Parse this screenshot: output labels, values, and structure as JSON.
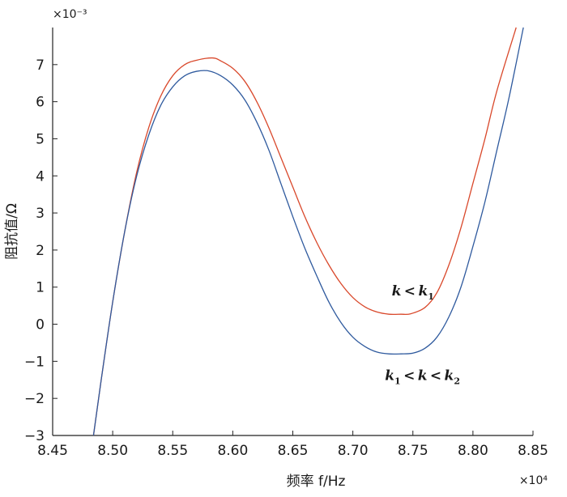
{
  "chart_data": {
    "type": "line",
    "xlabel": "频率 f/Hz",
    "ylabel": "阻抗值/Ω",
    "x_exponent_label": "×10⁴",
    "y_exponent_label": "×10⁻³",
    "xlim": [
      8.45,
      8.85
    ],
    "ylim": [
      -3,
      8
    ],
    "xticks": [
      "8.45",
      "8.50",
      "8.55",
      "8.60",
      "8.65",
      "8.70",
      "8.75",
      "8.80",
      "8.85"
    ],
    "yticks": [
      "7",
      "6",
      "5",
      "4",
      "3",
      "2",
      "1",
      "0",
      "-1",
      "-2",
      "-3"
    ],
    "grid": false,
    "series": [
      {
        "name": "k<k1",
        "color": "#d9482b",
        "x": [
          8.484,
          8.49,
          8.5,
          8.51,
          8.52,
          8.53,
          8.54,
          8.55,
          8.56,
          8.57,
          8.583,
          8.59,
          8.6,
          8.61,
          8.62,
          8.63,
          8.64,
          8.65,
          8.66,
          8.67,
          8.68,
          8.69,
          8.7,
          8.71,
          8.72,
          8.73,
          8.74,
          8.748,
          8.76,
          8.77,
          8.78,
          8.79,
          8.8,
          8.81,
          8.82,
          8.836
        ],
        "y": [
          -3.0,
          -1.6,
          0.6,
          2.5,
          4.1,
          5.3,
          6.15,
          6.7,
          7.0,
          7.12,
          7.18,
          7.1,
          6.9,
          6.55,
          6.0,
          5.3,
          4.5,
          3.7,
          2.9,
          2.2,
          1.6,
          1.1,
          0.72,
          0.47,
          0.33,
          0.27,
          0.27,
          0.28,
          0.45,
          0.85,
          1.6,
          2.6,
          3.8,
          5.0,
          6.3,
          8.0
        ]
      },
      {
        "name": "k1<k<k2",
        "color": "#2f5a9e",
        "x": [
          8.484,
          8.49,
          8.5,
          8.51,
          8.52,
          8.53,
          8.54,
          8.55,
          8.56,
          8.57,
          8.58,
          8.59,
          8.6,
          8.61,
          8.62,
          8.63,
          8.64,
          8.65,
          8.66,
          8.67,
          8.68,
          8.69,
          8.7,
          8.71,
          8.72,
          8.73,
          8.74,
          8.75,
          8.76,
          8.77,
          8.78,
          8.79,
          8.8,
          8.81,
          8.82,
          8.83,
          8.842
        ],
        "y": [
          -3.0,
          -1.6,
          0.6,
          2.5,
          4.0,
          5.1,
          5.9,
          6.4,
          6.7,
          6.82,
          6.83,
          6.7,
          6.45,
          6.05,
          5.45,
          4.7,
          3.8,
          2.9,
          2.05,
          1.3,
          0.6,
          0.05,
          -0.35,
          -0.6,
          -0.75,
          -0.8,
          -0.8,
          -0.78,
          -0.65,
          -0.35,
          0.2,
          1.0,
          2.1,
          3.3,
          4.7,
          6.1,
          8.0
        ]
      }
    ],
    "annotations": [
      {
        "series": "k<k1",
        "base": "k<k",
        "sub": "1",
        "x": 8.75,
        "y": 0.78
      },
      {
        "series": "k1<k<k2",
        "base1": "k",
        "sub1": "1",
        "mid": "<k<k",
        "sub2": "2",
        "x": 8.758,
        "y": -1.5
      }
    ]
  }
}
